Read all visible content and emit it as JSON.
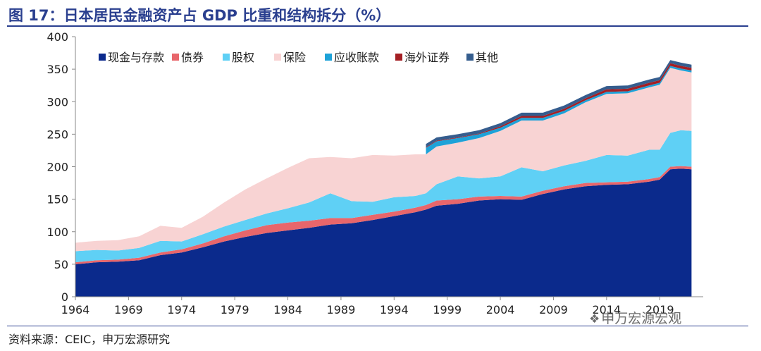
{
  "figure": {
    "title": "图 17：日本居民金融资产占 GDP 比重和结构拆分（%）",
    "source": "资料来源：CEIC，申万宏源研究",
    "watermark": "申万宏源宏观",
    "watermark_icon": "wechat-icon"
  },
  "chart_data": {
    "type": "area",
    "stacked": true,
    "title": "",
    "xlabel": "",
    "ylabel": "",
    "x": [
      1964,
      1966,
      1968,
      1970,
      1972,
      1974,
      1976,
      1978,
      1980,
      1982,
      1984,
      1986,
      1988,
      1990,
      1992,
      1994,
      1996,
      1997,
      1998,
      2000,
      2002,
      2004,
      2006,
      2008,
      2010,
      2012,
      2014,
      2016,
      2018,
      2019,
      2020,
      2021,
      2022
    ],
    "x_ticks": [
      "1964",
      "1969",
      "1974",
      "1979",
      "1984",
      "1989",
      "1994",
      "1999",
      "2004",
      "2009",
      "2014",
      "2019"
    ],
    "ylim": [
      0,
      400
    ],
    "y_ticks": [
      "0",
      "50",
      "100",
      "150",
      "200",
      "250",
      "300",
      "350",
      "400"
    ],
    "grid": false,
    "legend_position": "top",
    "series": [
      {
        "name": "现金与存款",
        "color": "#0b2a8c",
        "values": [
          50,
          53,
          54,
          56,
          64,
          68,
          76,
          85,
          92,
          98,
          102,
          106,
          111,
          113,
          118,
          124,
          130,
          134,
          140,
          143,
          148,
          150,
          149,
          158,
          165,
          170,
          172,
          173,
          177,
          180,
          196,
          197,
          196
        ]
      },
      {
        "name": "债券",
        "color": "#e8666b",
        "values": [
          3,
          3,
          3,
          4,
          4,
          5,
          6,
          8,
          10,
          12,
          12,
          11,
          10,
          8,
          8,
          7,
          7,
          7,
          8,
          7,
          6,
          5,
          5,
          5,
          5,
          5,
          4,
          4,
          4,
          4,
          4,
          4,
          4
        ]
      },
      {
        "name": "股权",
        "color": "#5fd0f5",
        "values": [
          17,
          16,
          14,
          15,
          18,
          12,
          14,
          15,
          16,
          18,
          22,
          28,
          38,
          26,
          20,
          22,
          18,
          18,
          25,
          35,
          28,
          30,
          45,
          30,
          32,
          34,
          42,
          40,
          45,
          42,
          52,
          55,
          55
        ]
      },
      {
        "name": "保险",
        "color": "#f8d3d3",
        "values": [
          13,
          14,
          16,
          18,
          23,
          21,
          27,
          37,
          47,
          54,
          62,
          68,
          56,
          66,
          72,
          64,
          64,
          60,
          58,
          52,
          62,
          70,
          72,
          78,
          80,
          90,
          94,
          96,
          96,
          100,
          100,
          92,
          90
        ]
      },
      {
        "name": "应收账款",
        "color": "#1ea2d8",
        "values": [
          0,
          0,
          0,
          0,
          0,
          0,
          0,
          0,
          0,
          0,
          0,
          0,
          0,
          0,
          0,
          0,
          0,
          10,
          8,
          7,
          6,
          5,
          4,
          4,
          4,
          3,
          3,
          3,
          3,
          3,
          3,
          3,
          3
        ]
      },
      {
        "name": "海外证券",
        "color": "#a41f24",
        "values": [
          0,
          0,
          0,
          0,
          0,
          0,
          0,
          0,
          0,
          0,
          0,
          0,
          0,
          0,
          0,
          0,
          0,
          1,
          1,
          1,
          1,
          2,
          3,
          3,
          3,
          3,
          4,
          4,
          4,
          4,
          4,
          4,
          4
        ]
      },
      {
        "name": "其他",
        "color": "#355d8e",
        "values": [
          0,
          0,
          0,
          0,
          0,
          0,
          0,
          0,
          0,
          0,
          0,
          0,
          0,
          0,
          0,
          0,
          0,
          5,
          5,
          5,
          5,
          5,
          5,
          5,
          5,
          5,
          5,
          5,
          5,
          5,
          5,
          5,
          5
        ]
      }
    ]
  }
}
